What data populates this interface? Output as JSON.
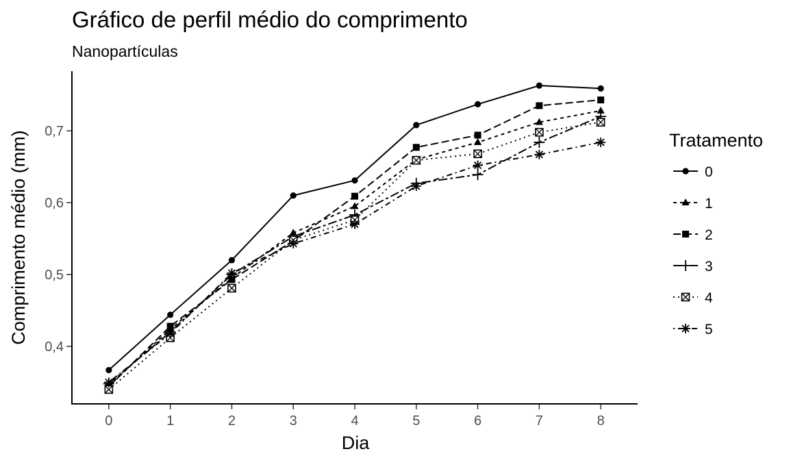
{
  "chart_data": {
    "type": "line",
    "title": "Gráfico de perfil médio do comprimento",
    "subtitle": "Nanopartículas",
    "xlabel": "Dia",
    "ylabel": "Comprimento médio (mm)",
    "x": [
      0,
      1,
      2,
      3,
      4,
      5,
      6,
      7,
      8
    ],
    "x_tick_labels": [
      "0",
      "1",
      "2",
      "3",
      "4",
      "5",
      "6",
      "7",
      "8"
    ],
    "xlim": [
      -0.6,
      8.6
    ],
    "y_ticks": [
      0.4,
      0.5,
      0.6,
      0.7
    ],
    "y_tick_labels": [
      "0,4",
      "0,5",
      "0,6",
      "0,7"
    ],
    "ylim": [
      0.32,
      0.783
    ],
    "grid": false,
    "legend": {
      "title": "Tratamento",
      "placement": "right"
    },
    "series": [
      {
        "name": "0",
        "line": "solid",
        "marker": "circle",
        "values": [
          0.367,
          0.444,
          0.52,
          0.61,
          0.631,
          0.708,
          0.737,
          0.763,
          0.759
        ]
      },
      {
        "name": "1",
        "line": "dashed",
        "marker": "triangle",
        "values": [
          0.345,
          0.424,
          0.495,
          0.558,
          0.595,
          0.66,
          0.684,
          0.712,
          0.728
        ]
      },
      {
        "name": "2",
        "line": "longdash",
        "marker": "square",
        "values": [
          0.344,
          0.428,
          0.493,
          0.547,
          0.609,
          0.677,
          0.694,
          0.735,
          0.743
        ]
      },
      {
        "name": "3",
        "line": "twodash",
        "marker": "plus",
        "values": [
          0.348,
          0.42,
          0.5,
          0.553,
          0.583,
          0.627,
          0.639,
          0.684,
          0.72
        ]
      },
      {
        "name": "4",
        "line": "dotted",
        "marker": "square-x",
        "values": [
          0.34,
          0.412,
          0.481,
          0.548,
          0.576,
          0.659,
          0.668,
          0.698,
          0.712
        ]
      },
      {
        "name": "5",
        "line": "dotdash",
        "marker": "asterisk",
        "values": [
          0.35,
          0.418,
          0.502,
          0.543,
          0.57,
          0.623,
          0.652,
          0.667,
          0.684
        ]
      }
    ]
  }
}
